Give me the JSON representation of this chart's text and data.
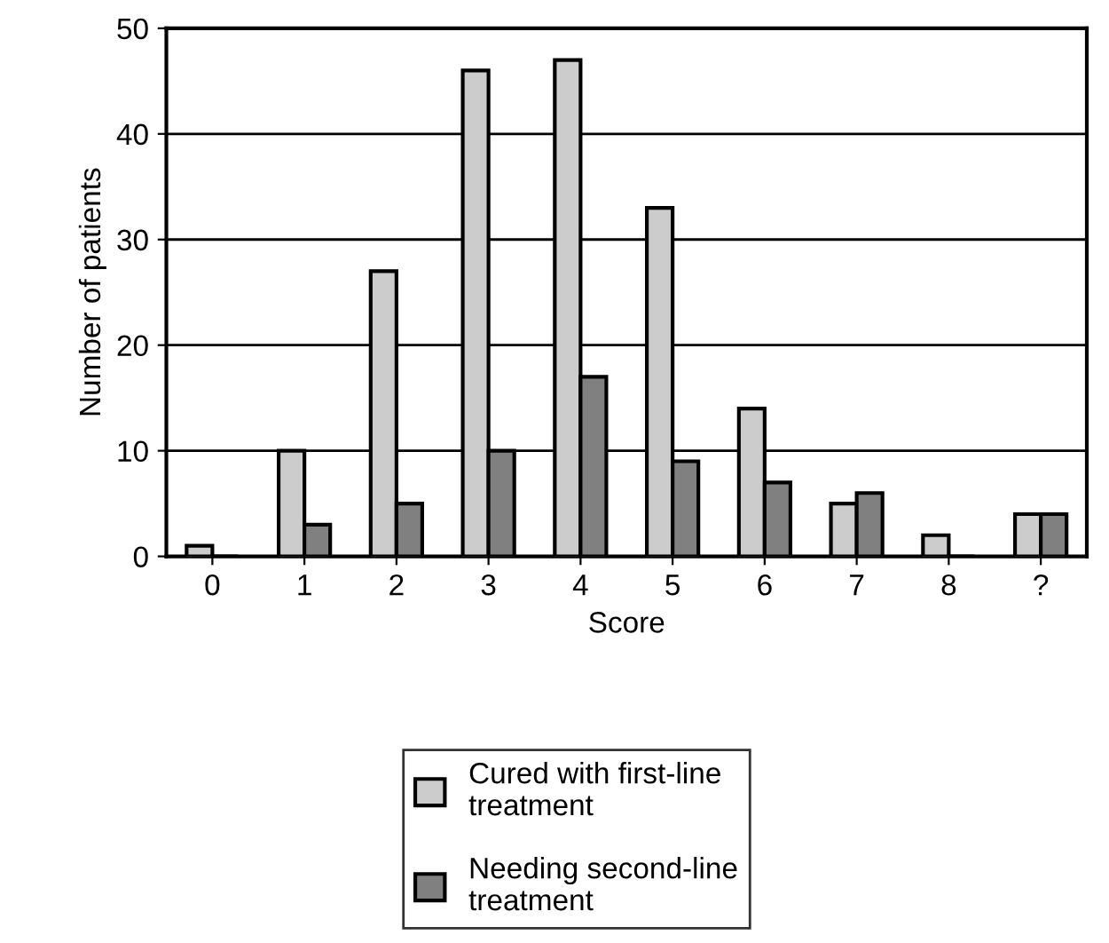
{
  "chart_data": {
    "type": "bar",
    "xlabel": "Score",
    "ylabel": "Number of patients",
    "categories": [
      "0",
      "1",
      "2",
      "3",
      "4",
      "5",
      "6",
      "7",
      "8",
      "?"
    ],
    "series": [
      {
        "name": "Cured with first-line\ntreatment",
        "color": "#cccccc",
        "values": [
          1,
          10,
          27,
          46,
          47,
          33,
          14,
          5,
          2,
          4
        ]
      },
      {
        "name": "Needing second-line\ntreatment",
        "color": "#808080",
        "values": [
          0,
          3,
          5,
          10,
          17,
          9,
          7,
          6,
          0,
          4
        ]
      }
    ],
    "ylim": [
      0,
      50
    ],
    "yticks": [
      0,
      10,
      20,
      30,
      40,
      50
    ],
    "grid": "y",
    "legend": "bottom"
  }
}
